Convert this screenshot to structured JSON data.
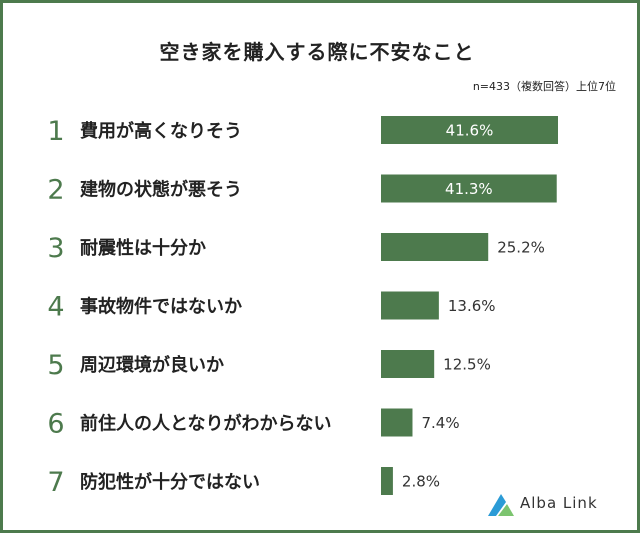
{
  "chart_data": {
    "type": "bar",
    "orientation": "horizontal",
    "title": "空き家を購入する際に不安なこと",
    "note": "n=433（複数回答）上位7位",
    "ranks": [
      "1",
      "2",
      "3",
      "4",
      "5",
      "6",
      "7"
    ],
    "categories": [
      "費用が高くなりそう",
      "建物の状態が悪そう",
      "耐震性は十分か",
      "事故物件ではないか",
      "周辺環境が良いか",
      "前住人の人となりがわからない",
      "防犯性が十分ではない"
    ],
    "values": [
      41.6,
      41.3,
      25.2,
      13.6,
      12.5,
      7.4,
      2.8
    ],
    "value_labels": [
      "41.6%",
      "41.3%",
      "25.2%",
      "13.6%",
      "12.5%",
      "7.4%",
      "2.8%"
    ],
    "xlim": [
      0,
      41.6
    ],
    "bar_color": "#4d7a4d",
    "rank_color": "#4d7a4d",
    "grid": false,
    "legend": "none"
  },
  "logo": {
    "icon": "alba-link-logo-icon",
    "text": "Alba Link",
    "colors": [
      "#2b9bd6",
      "#7cc46f"
    ]
  }
}
